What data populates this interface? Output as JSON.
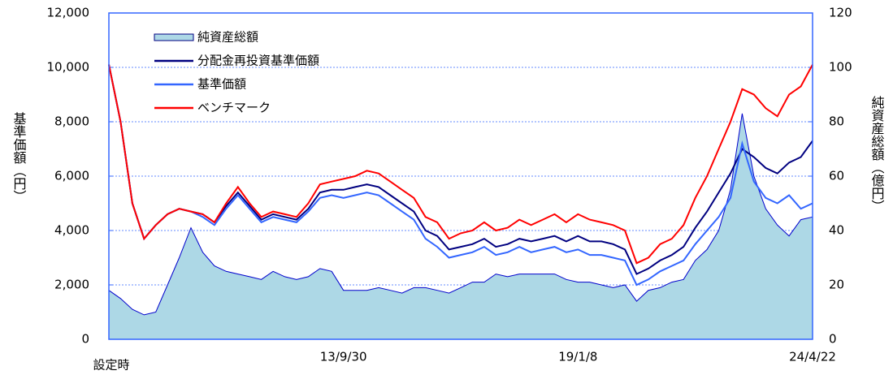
{
  "chart_data": {
    "type": "line",
    "y_label": "基準価額（円）",
    "y2_label": "純資産総額（億円）",
    "categories": [
      "設定時",
      null,
      null,
      null,
      null,
      null,
      null,
      null,
      null,
      null,
      null,
      null,
      null,
      null,
      null,
      null,
      null,
      null,
      null,
      null,
      "13/9/30",
      null,
      null,
      null,
      null,
      null,
      null,
      null,
      null,
      null,
      null,
      null,
      null,
      null,
      null,
      null,
      null,
      null,
      null,
      null,
      "19/1/8",
      null,
      null,
      null,
      null,
      null,
      null,
      null,
      null,
      null,
      null,
      null,
      null,
      null,
      null,
      null,
      null,
      null,
      null,
      null,
      "24/4/22"
    ],
    "ylim": [
      0,
      12000
    ],
    "yticks": [
      0,
      {
        "value": 2000,
        "label": "2,000"
      },
      {
        "value": 4000,
        "label": "4,000"
      },
      {
        "value": 6000,
        "label": "6,000"
      },
      {
        "value": 8000,
        "label": "8,000"
      },
      {
        "value": 10000,
        "label": "10,000"
      },
      {
        "value": 12000,
        "label": "12,000"
      }
    ],
    "y2lim": [
      0,
      120
    ],
    "y2ticks": [
      0,
      20,
      40,
      60,
      80,
      100,
      120
    ],
    "grid": true,
    "legend": "upper left",
    "series": [
      {
        "name": "純資産総額",
        "type": "area",
        "axis": "y2",
        "color": "#add8e6",
        "values": [
          18,
          15,
          11,
          9,
          10,
          20,
          30,
          41,
          32,
          27,
          25,
          24,
          23,
          22,
          25,
          23,
          22,
          23,
          26,
          25,
          18,
          18,
          18,
          19,
          18,
          17,
          19,
          19,
          18,
          17,
          19,
          21,
          21,
          24,
          23,
          24,
          24,
          24,
          24,
          22,
          21,
          21,
          20,
          19,
          20,
          14,
          18,
          19,
          21,
          22,
          29,
          33,
          40,
          55,
          83,
          60,
          48,
          42,
          38,
          44,
          45
        ]
      },
      {
        "name": "分配金再投資基準価額",
        "color": "#000080",
        "values": [
          10100,
          8000,
          5000,
          3700,
          4200,
          4600,
          4800,
          4700,
          4600,
          4300,
          4900,
          5400,
          4900,
          4400,
          4600,
          4500,
          4400,
          4800,
          5400,
          5500,
          5500,
          5600,
          5700,
          5600,
          5300,
          5000,
          4700,
          4000,
          3800,
          3300,
          3400,
          3500,
          3700,
          3400,
          3500,
          3700,
          3600,
          3700,
          3800,
          3600,
          3800,
          3600,
          3600,
          3500,
          3300,
          2400,
          2600,
          2900,
          3100,
          3400,
          4100,
          4700,
          5400,
          6100,
          7000,
          6700,
          6300,
          6100,
          6500,
          6700,
          7300
        ]
      },
      {
        "name": "基準価額",
        "color": "#3366ff",
        "values": [
          10100,
          8000,
          5000,
          3700,
          4200,
          4600,
          4800,
          4700,
          4500,
          4200,
          4800,
          5300,
          4800,
          4300,
          4500,
          4400,
          4300,
          4700,
          5200,
          5300,
          5200,
          5300,
          5400,
          5300,
          5000,
          4700,
          4400,
          3700,
          3400,
          3000,
          3100,
          3200,
          3400,
          3100,
          3200,
          3400,
          3200,
          3300,
          3400,
          3200,
          3300,
          3100,
          3100,
          3000,
          2900,
          2000,
          2200,
          2500,
          2700,
          2900,
          3500,
          4000,
          4500,
          5200,
          7200,
          5800,
          5200,
          5000,
          5300,
          4800,
          5000
        ]
      },
      {
        "name": "ベンチマーク",
        "color": "#ff0000",
        "values": [
          10100,
          8000,
          5000,
          3700,
          4200,
          4600,
          4800,
          4700,
          4600,
          4300,
          5000,
          5600,
          5000,
          4500,
          4700,
          4600,
          4500,
          5000,
          5700,
          5800,
          5900,
          6000,
          6200,
          6100,
          5800,
          5500,
          5200,
          4500,
          4300,
          3700,
          3900,
          4000,
          4300,
          4000,
          4100,
          4400,
          4200,
          4400,
          4600,
          4300,
          4600,
          4400,
          4300,
          4200,
          4000,
          2800,
          3000,
          3500,
          3700,
          4200,
          5200,
          6000,
          7000,
          8000,
          9200,
          9000,
          8500,
          8200,
          9000,
          9300,
          10100
        ]
      }
    ]
  }
}
